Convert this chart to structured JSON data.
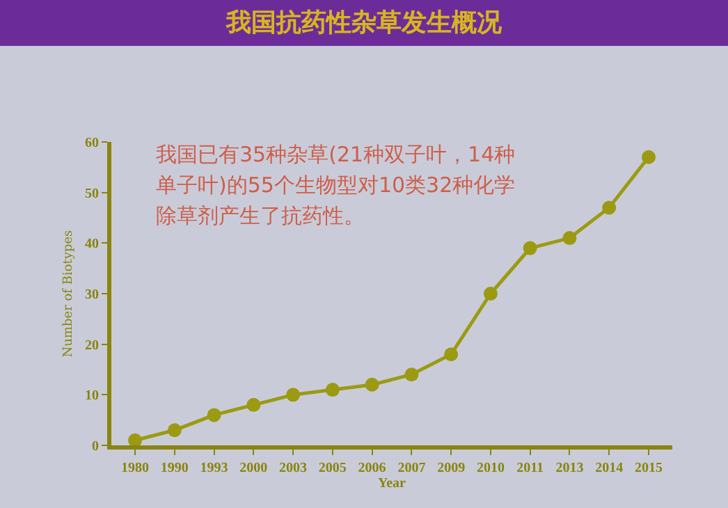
{
  "chart_data": {
    "type": "line",
    "title": "我国抗药性杂草发生概况",
    "xlabel": "Year",
    "ylabel": "Number of Biotypes",
    "categories": [
      "1980",
      "1990",
      "1993",
      "2000",
      "2003",
      "2005",
      "2006",
      "2007",
      "2009",
      "2010",
      "2011",
      "2013",
      "2014",
      "2015"
    ],
    "series": [
      {
        "color": "#9c9a12",
        "values": [
          1,
          3,
          6,
          8,
          10,
          11,
          12,
          14,
          18,
          30,
          39,
          41,
          47,
          57
        ]
      }
    ],
    "ylim": [
      0,
      60
    ],
    "yticks": [
      0,
      10,
      20,
      30,
      40,
      50,
      60
    ],
    "grid": false,
    "marker": "circle",
    "line_style": "solid",
    "annotations": [
      "我国已有35种杂草(21种双子叶，14种单子叶)的55个生物型对10类32种化学除草剂产生了抗药性。"
    ]
  }
}
